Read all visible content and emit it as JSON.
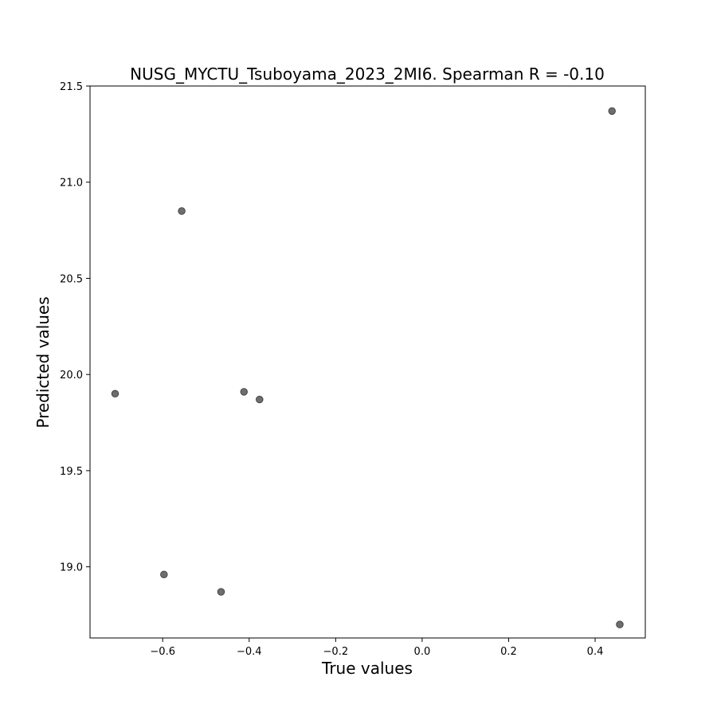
{
  "chart_data": {
    "type": "scatter",
    "title": "NUSG_MYCTU_Tsuboyama_2023_2MI6. Spearman R = -0.10",
    "xlabel": "True values",
    "ylabel": "Predicted values",
    "xlim": [
      -0.768,
      0.516
    ],
    "ylim": [
      18.63,
      21.5
    ],
    "xticks": [
      -0.6,
      -0.4,
      -0.2,
      0.0,
      0.2,
      0.4
    ],
    "xtick_labels": [
      "−0.6",
      "−0.4",
      "−0.2",
      "0.0",
      "0.2",
      "0.4"
    ],
    "yticks": [
      19.0,
      19.5,
      20.0,
      20.5,
      21.0,
      21.5
    ],
    "ytick_labels": [
      "19.0",
      "19.5",
      "20.0",
      "20.5",
      "21.0",
      "21.5"
    ],
    "grid": false,
    "marker_color": "#555555",
    "points": [
      {
        "x": -0.71,
        "y": 19.9
      },
      {
        "x": -0.597,
        "y": 18.96
      },
      {
        "x": -0.556,
        "y": 20.85
      },
      {
        "x": -0.465,
        "y": 18.87
      },
      {
        "x": -0.412,
        "y": 19.91
      },
      {
        "x": -0.376,
        "y": 19.87
      },
      {
        "x": 0.439,
        "y": 21.37
      },
      {
        "x": 0.457,
        "y": 18.7
      }
    ]
  }
}
